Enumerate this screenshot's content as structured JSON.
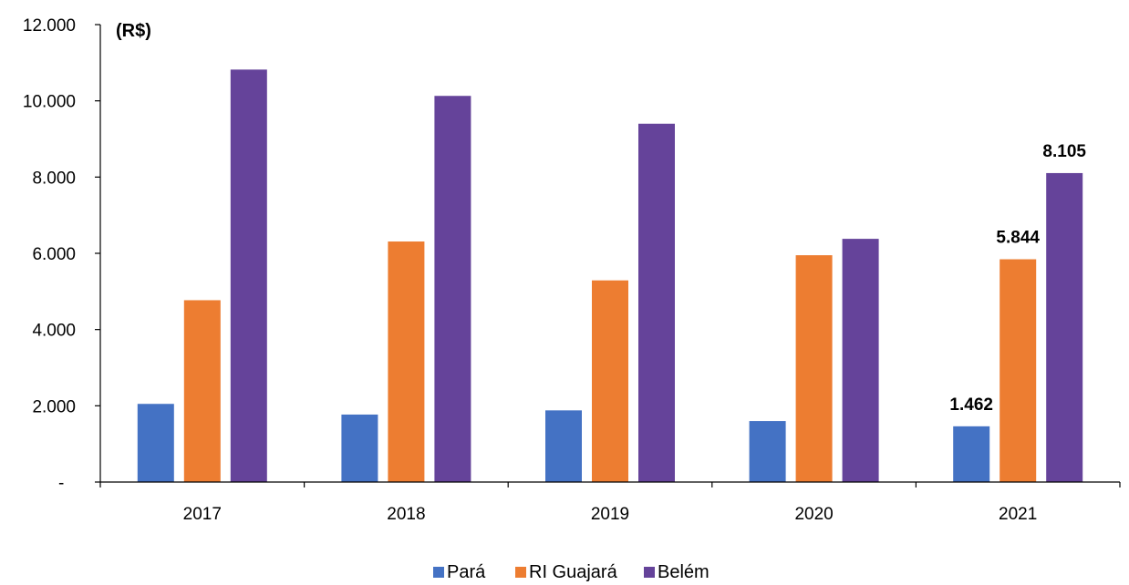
{
  "chart_data": {
    "type": "bar",
    "unit_label": "(R$)",
    "categories": [
      "2017",
      "2018",
      "2019",
      "2020",
      "2021"
    ],
    "series": [
      {
        "name": "Pará",
        "color": "#4472c4",
        "values": [
          2050,
          1770,
          1880,
          1600,
          1462
        ]
      },
      {
        "name": "RI Guajará",
        "color": "#ed7d31",
        "values": [
          4770,
          6310,
          5290,
          5950,
          5844
        ]
      },
      {
        "name": "Belém",
        "color": "#65439a",
        "values": [
          10820,
          10130,
          9400,
          6380,
          8105
        ]
      }
    ],
    "data_labels": [
      {
        "series": 0,
        "category": 4,
        "text": "1.462"
      },
      {
        "series": 1,
        "category": 4,
        "text": "5.844"
      },
      {
        "series": 2,
        "category": 4,
        "text": "8.105"
      }
    ],
    "y_ticks": [
      {
        "value": 0,
        "label": "-"
      },
      {
        "value": 2000,
        "label": "2.000"
      },
      {
        "value": 4000,
        "label": "4.000"
      },
      {
        "value": 6000,
        "label": "6.000"
      },
      {
        "value": 8000,
        "label": "8.000"
      },
      {
        "value": 10000,
        "label": "10.000"
      },
      {
        "value": 12000,
        "label": "12.000"
      }
    ],
    "ylim": [
      0,
      12000
    ],
    "grid": false,
    "legend_position": "bottom"
  }
}
